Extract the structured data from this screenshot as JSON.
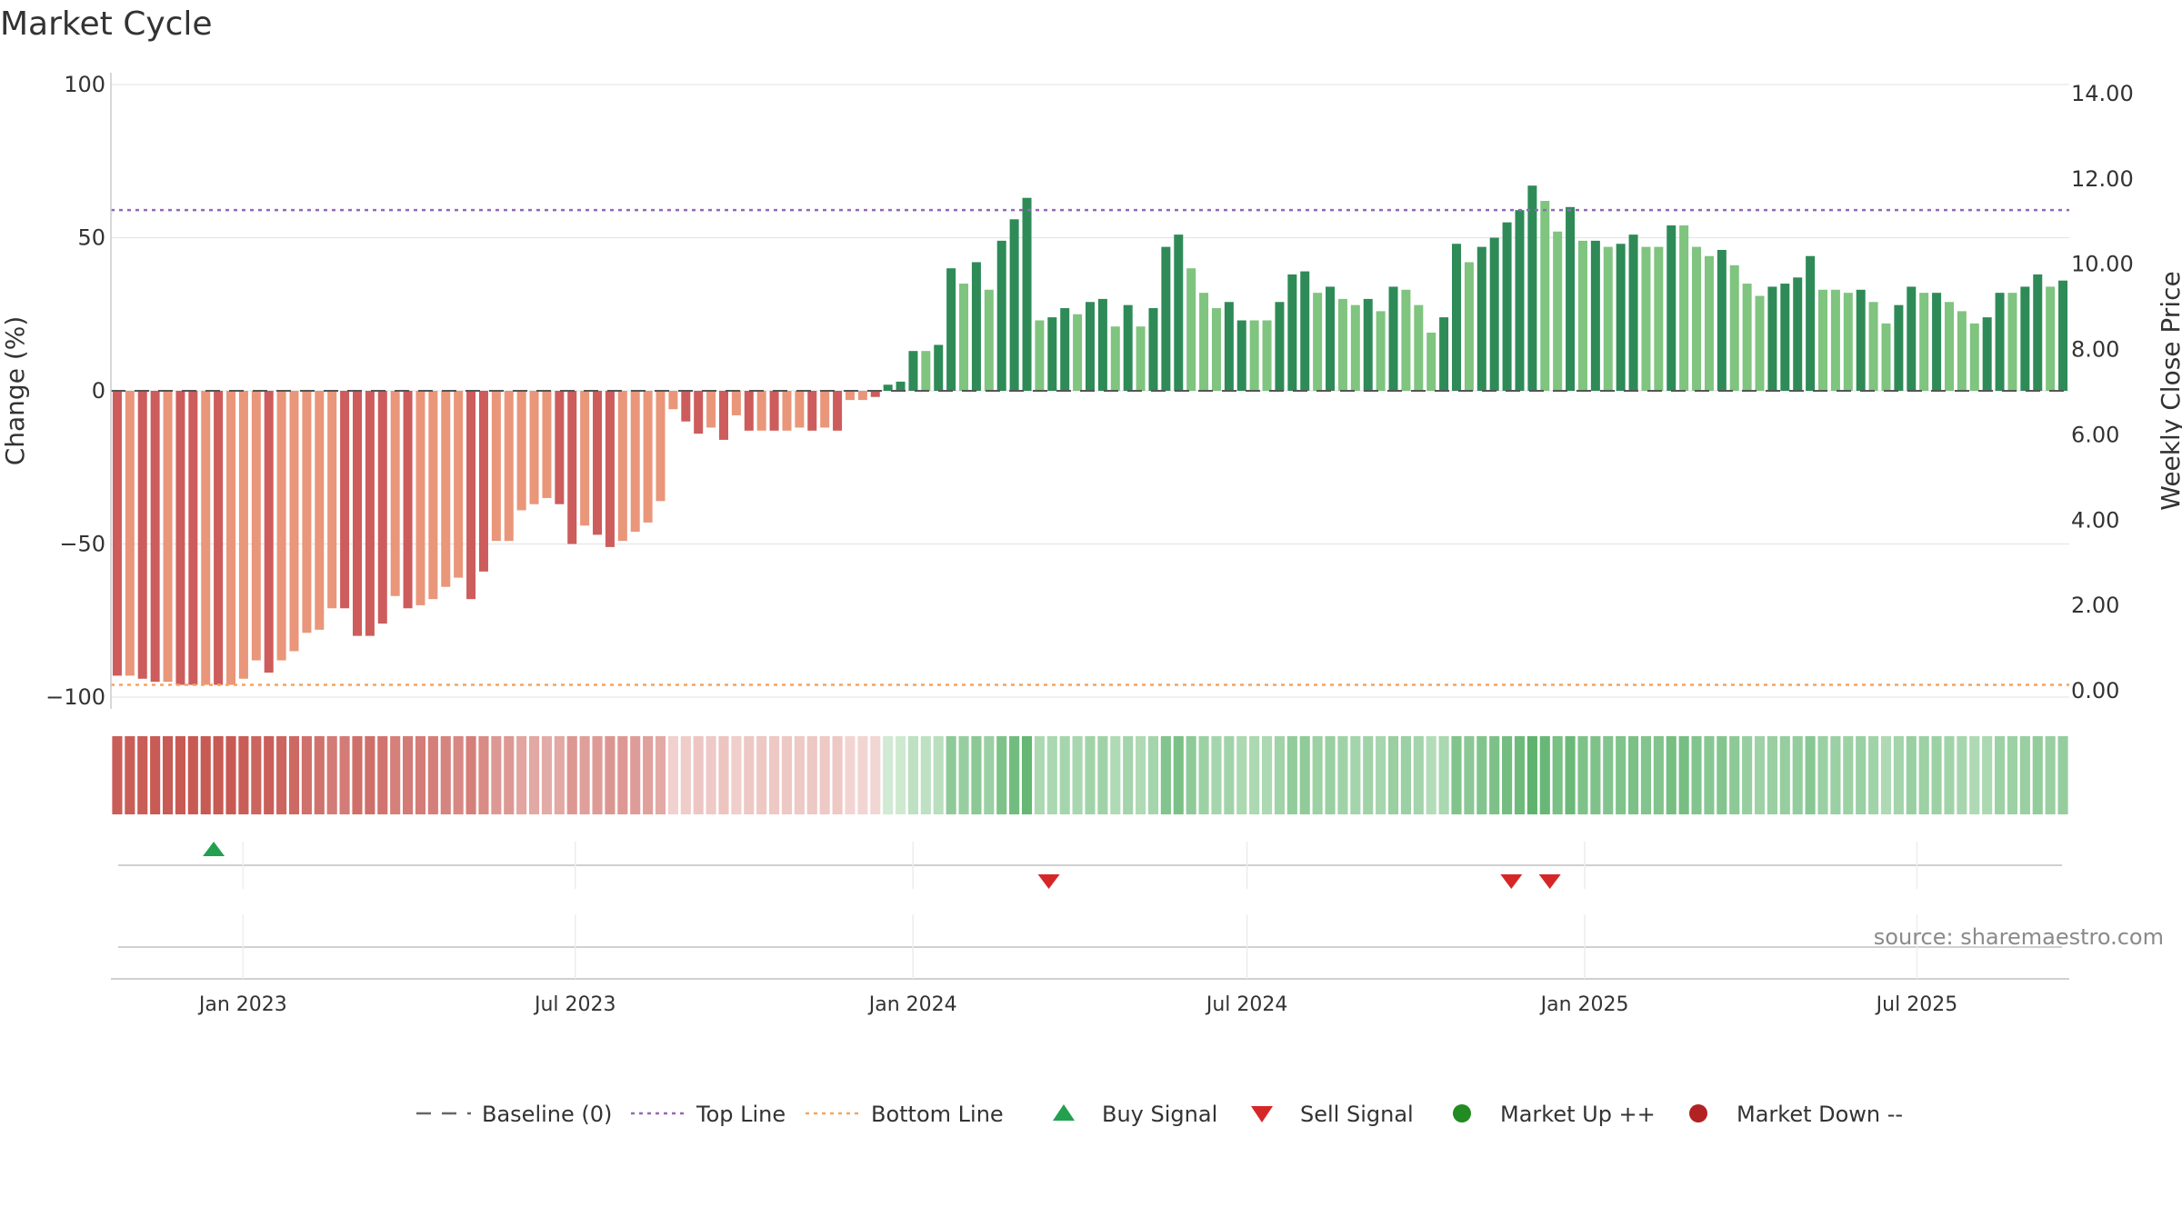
{
  "chart_data": {
    "type": "bar",
    "title": "Market Cycle",
    "ylabel": "Change (%)",
    "y2label": "Weekly Close Price",
    "ylim": [
      -100,
      100
    ],
    "y2lim": [
      0,
      14
    ],
    "yticks": [
      "100",
      "50",
      "0",
      "−50",
      "−100"
    ],
    "y2ticks": [
      "14.00",
      "12.00",
      "10.00",
      "8.00",
      "6.00",
      "4.00",
      "2.00",
      "0.00"
    ],
    "xticks": [
      {
        "label": "Jan 2023",
        "date": "2023-01-01"
      },
      {
        "label": "Jul 2023",
        "date": "2023-07-01"
      },
      {
        "label": "Jan 2024",
        "date": "2024-01-01"
      },
      {
        "label": "Jul 2024",
        "date": "2024-07-01"
      },
      {
        "label": "Jan 2025",
        "date": "2025-01-01"
      },
      {
        "label": "Jul 2025",
        "date": "2025-07-01"
      }
    ],
    "x_start": "2022-10-21",
    "x_end": "2025-09-22",
    "top_line": 59,
    "bottom_line": -96,
    "baseline": 0,
    "source": "source: sharemaestro.com",
    "values": [
      -93,
      -93,
      -94,
      -95,
      -95,
      -96,
      -96,
      -96,
      -96,
      -96,
      -94,
      -88,
      -92,
      -88,
      -85,
      -79,
      -78,
      -71,
      -71,
      -80,
      -80,
      -76,
      -67,
      -71,
      -70,
      -68,
      -64,
      -61,
      -68,
      -59,
      -49,
      -49,
      -39,
      -37,
      -35,
      -37,
      -50,
      -44,
      -47,
      -51,
      -49,
      -46,
      -43,
      -36,
      -6,
      -10,
      -14,
      -12,
      -16,
      -8,
      -13,
      -13,
      -13,
      -13,
      -12,
      -13,
      -12,
      -13,
      -3,
      -3,
      -2,
      2,
      3,
      13,
      13,
      15,
      40,
      35,
      42,
      33,
      49,
      56,
      63,
      23,
      24,
      27,
      25,
      29,
      30,
      21,
      28,
      21,
      27,
      47,
      51,
      40,
      32,
      27,
      29,
      23,
      23,
      23,
      29,
      38,
      39,
      32,
      34,
      30,
      28,
      30,
      26,
      34,
      33,
      28,
      19,
      24,
      48,
      42,
      47,
      50,
      55,
      59,
      67,
      62,
      52,
      60,
      49,
      49,
      47,
      48,
      51,
      47,
      47,
      54,
      54,
      47,
      44,
      46,
      41,
      35,
      31,
      34,
      35,
      37,
      44,
      33,
      33,
      32,
      33,
      29,
      22,
      28,
      34,
      32,
      32,
      29,
      26,
      22,
      24,
      32,
      32,
      34,
      38,
      34,
      36
    ],
    "shade_pattern": [
      1,
      0,
      1,
      1,
      0,
      1,
      1,
      0,
      1,
      0,
      0,
      0,
      1,
      0,
      0,
      0,
      0,
      0,
      1,
      1,
      1,
      1,
      0,
      1,
      0,
      0,
      0,
      0,
      1,
      1,
      0,
      0,
      0,
      0,
      0,
      1,
      1,
      0,
      1,
      1,
      0,
      0,
      0,
      0,
      0,
      1,
      1,
      0,
      1,
      0,
      1,
      0,
      1,
      0,
      0,
      1,
      0,
      1,
      0,
      0,
      1,
      1,
      1,
      1,
      0,
      1,
      1,
      0,
      1,
      0,
      1,
      1,
      1,
      0,
      1,
      1,
      0,
      1,
      1,
      0,
      1,
      0,
      1,
      1,
      1,
      0,
      0,
      0,
      1,
      1,
      0,
      0,
      1,
      1,
      1,
      0,
      1,
      0,
      0,
      1,
      0,
      1,
      0,
      0,
      0,
      1,
      1,
      0,
      1,
      1,
      1,
      1,
      1,
      0,
      0,
      1,
      0,
      1,
      0,
      1,
      1,
      0,
      0,
      1,
      0,
      0,
      0,
      1,
      0,
      0,
      0,
      1,
      1,
      1,
      1,
      0,
      0,
      0,
      1,
      0,
      0,
      1,
      1,
      0,
      1,
      0,
      0,
      0,
      1,
      1,
      0,
      1,
      1,
      0,
      1
    ],
    "signals": [
      {
        "type": "buy",
        "date": "2022-12-16"
      },
      {
        "type": "sell",
        "date": "2024-03-15"
      },
      {
        "type": "sell",
        "date": "2024-11-22"
      },
      {
        "type": "sell",
        "date": "2024-12-13"
      }
    ],
    "legend": [
      {
        "label": "Baseline (0)",
        "marker": "dash",
        "color": "#666666"
      },
      {
        "label": "Top Line",
        "marker": "dotted",
        "color": "#9467bd"
      },
      {
        "label": "Bottom Line",
        "marker": "dotted",
        "color": "#f4a460"
      },
      {
        "label": "Buy Signal",
        "marker": "triangle-up",
        "color": "#22a050"
      },
      {
        "label": "Sell Signal",
        "marker": "triangle-down",
        "color": "#d62728"
      },
      {
        "label": "Market Up ++",
        "marker": "circle",
        "color": "#228b22"
      },
      {
        "label": "Market Down --",
        "marker": "circle",
        "color": "#b22222"
      }
    ],
    "colors": {
      "neg_dark": "#cd5c5c",
      "neg_light": "#e9967a",
      "pos_dark": "#2e8b57",
      "pos_light": "#7fc47f",
      "top_line": "#9467bd",
      "bottom_line": "#f4a460",
      "buy": "#22a050",
      "sell": "#d62728"
    }
  }
}
